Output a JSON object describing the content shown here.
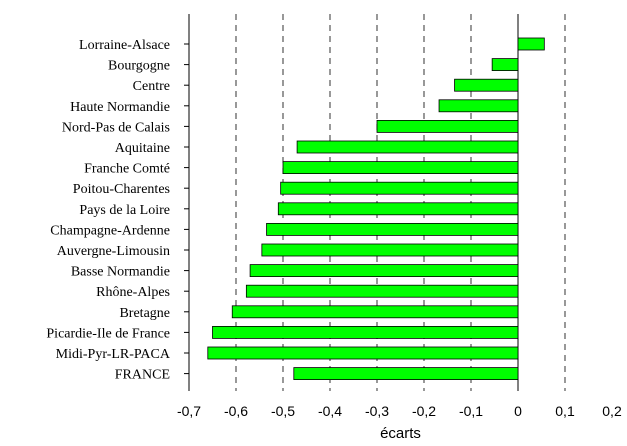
{
  "chart_data": {
    "type": "bar",
    "orientation": "horizontal",
    "title": "",
    "xlabel": "écarts",
    "ylabel": "",
    "xlim": [
      -0.7,
      0.2
    ],
    "xticks": [
      -0.7,
      -0.6,
      -0.5,
      -0.4,
      -0.3,
      -0.2,
      -0.1,
      0,
      0.1,
      0.2
    ],
    "xtick_labels": [
      "-0,7",
      "-0,6",
      "-0,5",
      "-0,4",
      "-0,3",
      "-0,2",
      "-0,1",
      "0",
      "0,1",
      "0,2"
    ],
    "grid": "vertical dashed",
    "bar_color": "#00ff00",
    "categories": [
      "Lorraine-Alsace",
      "Bourgogne",
      "Centre",
      "Haute Normandie",
      "Nord-Pas de Calais",
      "Aquitaine",
      "Franche Comté",
      "Poitou-Charentes",
      "Pays de la Loire",
      "Champagne-Ardenne",
      "Auvergne-Limousin",
      "Basse Normandie",
      "Rhône-Alpes",
      "Bretagne",
      "Picardie-Ile de France",
      "Midi-Pyr-LR-PACA",
      "FRANCE"
    ],
    "values": [
      0.056,
      -0.055,
      -0.135,
      -0.168,
      -0.3,
      -0.47,
      -0.5,
      -0.505,
      -0.51,
      -0.535,
      -0.545,
      -0.57,
      -0.578,
      -0.608,
      -0.65,
      -0.66,
      -0.477
    ]
  }
}
